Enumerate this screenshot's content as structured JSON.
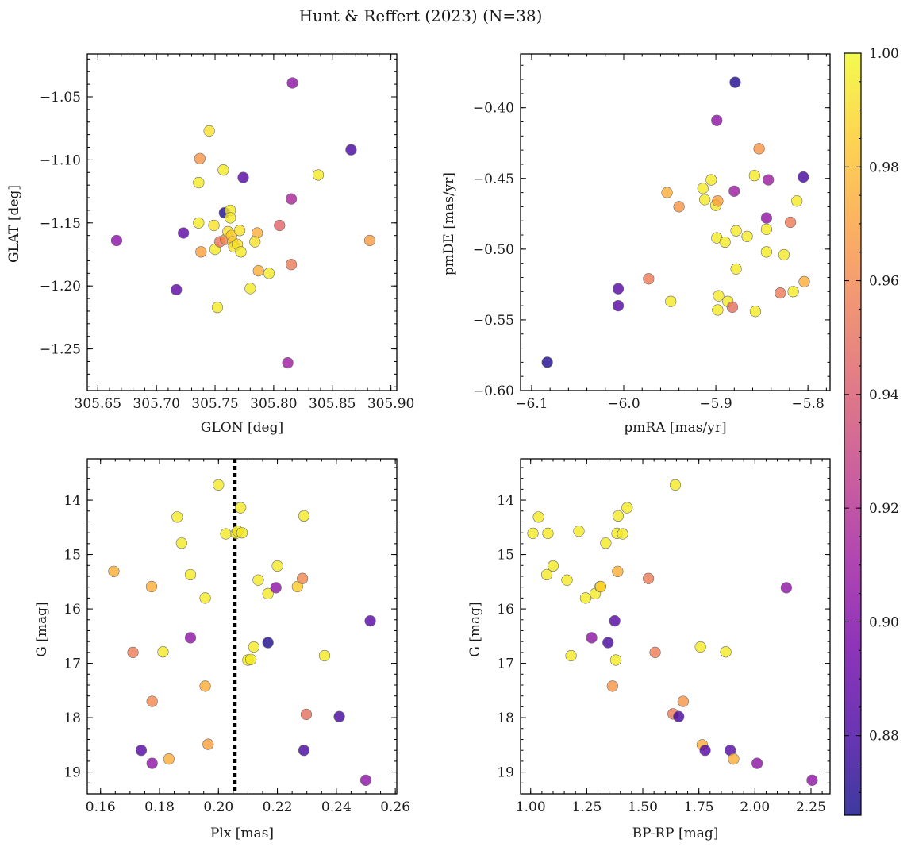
{
  "figure": {
    "title": "Hunt & Reffert (2023) (N=38)"
  },
  "colormap": {
    "name": "plasma",
    "stops": [
      "#0d0887",
      "#46039f",
      "#7201a8",
      "#9c179e",
      "#bd3786",
      "#d8576b",
      "#ed7953",
      "#fb9f3a",
      "#fdca26",
      "#f0f921"
    ],
    "alpha": 0.8,
    "range": [
      0.866,
      1.0
    ],
    "ticks": [
      0.88,
      0.9,
      0.92,
      0.94,
      0.96,
      0.98,
      1.0
    ],
    "tick_labels": [
      "0.88",
      "0.90",
      "0.92",
      "0.94",
      "0.96",
      "0.98",
      "1.00"
    ]
  },
  "chart_data": [
    {
      "type": "scatter",
      "xlabel": "GLON [deg]",
      "ylabel": "GLAT [deg]",
      "xlim": [
        305.641,
        305.905
      ],
      "ylim": [
        -1.283,
        -1.016
      ],
      "xticks": [
        305.65,
        305.7,
        305.75,
        305.8,
        305.85,
        305.9
      ],
      "xtick_labels": [
        "305.65",
        "305.70",
        "305.75",
        "305.80",
        "305.85",
        "305.90"
      ],
      "yticks": [
        -1.25,
        -1.2,
        -1.15,
        -1.1,
        -1.05
      ],
      "ytick_labels": [
        "−1.25",
        "−1.20",
        "−1.15",
        "−1.10",
        "−1.05"
      ],
      "x_minor_step": 0.01,
      "y_minor_step": 0.01,
      "points": [
        [
          305.666,
          -1.164,
          0.903
        ],
        [
          305.717,
          -1.203,
          0.888
        ],
        [
          305.723,
          -1.158,
          0.888
        ],
        [
          305.736,
          -1.118,
          0.995
        ],
        [
          305.736,
          -1.15,
          0.995
        ],
        [
          305.737,
          -1.099,
          0.965
        ],
        [
          305.738,
          -1.173,
          0.97
        ],
        [
          305.745,
          -1.077,
          0.992
        ],
        [
          305.749,
          -1.152,
          0.992
        ],
        [
          305.75,
          -1.171,
          0.995
        ],
        [
          305.752,
          -1.217,
          0.995
        ],
        [
          305.754,
          -1.165,
          0.952
        ],
        [
          305.757,
          -1.108,
          0.995
        ],
        [
          305.758,
          -1.142,
          0.87
        ],
        [
          305.759,
          -1.163,
          0.96
        ],
        [
          305.761,
          -1.157,
          0.992
        ],
        [
          305.763,
          -1.14,
          0.995
        ],
        [
          305.763,
          -1.146,
          0.995
        ],
        [
          305.764,
          -1.16,
          0.985
        ],
        [
          305.765,
          -1.165,
          0.985
        ],
        [
          305.766,
          -1.169,
          0.992
        ],
        [
          305.769,
          -1.167,
          0.992
        ],
        [
          305.771,
          -1.156,
          0.992
        ],
        [
          305.772,
          -1.173,
          0.995
        ],
        [
          305.774,
          -1.114,
          0.885
        ],
        [
          305.78,
          -1.202,
          0.995
        ],
        [
          305.786,
          -1.158,
          0.975
        ],
        [
          305.787,
          -1.188,
          0.975
        ],
        [
          305.796,
          -1.19,
          0.995
        ],
        [
          305.805,
          -1.152,
          0.945
        ],
        [
          305.812,
          -1.261,
          0.91
        ],
        [
          305.815,
          -1.183,
          0.955
        ],
        [
          305.815,
          -1.131,
          0.915
        ],
        [
          305.816,
          -1.039,
          0.905
        ],
        [
          305.838,
          -1.112,
          0.995
        ],
        [
          305.866,
          -1.092,
          0.88
        ],
        [
          305.882,
          -1.164,
          0.968
        ],
        [
          305.784,
          -1.165,
          0.992
        ]
      ]
    },
    {
      "type": "scatter",
      "xlabel": "pmRA [mas/yr]",
      "ylabel": "pmDE [mas/yr]",
      "xlim": [
        -6.112,
        -5.776
      ],
      "ylim": [
        -0.6,
        -0.362
      ],
      "xticks": [
        -6.1,
        -6.0,
        -5.9,
        -5.8
      ],
      "xtick_labels": [
        "−6.1",
        "−6.0",
        "−5.9",
        "−5.8"
      ],
      "yticks": [
        -0.6,
        -0.55,
        -0.5,
        -0.45,
        -0.4
      ],
      "ytick_labels": [
        "−0.60",
        "−0.55",
        "−0.50",
        "−0.45",
        "−0.40"
      ],
      "x_minor_step": 0.02,
      "y_minor_step": 0.01,
      "points": [
        [
          -6.083,
          -0.58,
          0.87
        ],
        [
          -6.006,
          -0.528,
          0.885
        ],
        [
          -6.006,
          -0.54,
          0.885
        ],
        [
          -5.973,
          -0.521,
          0.955
        ],
        [
          -5.953,
          -0.46,
          0.975
        ],
        [
          -5.949,
          -0.537,
          0.995
        ],
        [
          -5.94,
          -0.47,
          0.965
        ],
        [
          -5.914,
          -0.457,
          0.995
        ],
        [
          -5.912,
          -0.465,
          0.995
        ],
        [
          -5.905,
          -0.451,
          0.995
        ],
        [
          -5.9,
          -0.469,
          0.995
        ],
        [
          -5.899,
          -0.492,
          0.995
        ],
        [
          -5.898,
          -0.543,
          0.995
        ],
        [
          -5.897,
          -0.533,
          0.995
        ],
        [
          -5.898,
          -0.466,
          0.97
        ],
        [
          -5.899,
          -0.409,
          0.905
        ],
        [
          -5.89,
          -0.495,
          0.995
        ],
        [
          -5.887,
          -0.537,
          0.995
        ],
        [
          -5.882,
          -0.541,
          0.95
        ],
        [
          -5.88,
          -0.459,
          0.91
        ],
        [
          -5.878,
          -0.487,
          0.995
        ],
        [
          -5.878,
          -0.514,
          0.995
        ],
        [
          -5.879,
          -0.382,
          0.87
        ],
        [
          -5.866,
          -0.491,
          0.995
        ],
        [
          -5.858,
          -0.448,
          0.995
        ],
        [
          -5.857,
          -0.544,
          0.995
        ],
        [
          -5.853,
          -0.429,
          0.965
        ],
        [
          -5.845,
          -0.478,
          0.905
        ],
        [
          -5.845,
          -0.486,
          0.995
        ],
        [
          -5.845,
          -0.502,
          0.995
        ],
        [
          -5.843,
          -0.451,
          0.91
        ],
        [
          -5.83,
          -0.531,
          0.955
        ],
        [
          -5.826,
          -0.504,
          0.995
        ],
        [
          -5.819,
          -0.481,
          0.955
        ],
        [
          -5.816,
          -0.53,
          0.995
        ],
        [
          -5.812,
          -0.466,
          0.995
        ],
        [
          -5.805,
          -0.449,
          0.88
        ],
        [
          -5.804,
          -0.523,
          0.975
        ]
      ]
    },
    {
      "type": "scatter",
      "xlabel": "Plx [mas]",
      "ylabel": "G [mag]",
      "xlim": [
        0.1555,
        0.2605
      ],
      "ylim": [
        19.4,
        13.24
      ],
      "xticks": [
        0.16,
        0.18,
        0.2,
        0.22,
        0.24,
        0.26
      ],
      "xtick_labels": [
        "0.16",
        "0.18",
        "0.20",
        "0.22",
        "0.24",
        "0.26"
      ],
      "yticks": [
        14,
        15,
        16,
        17,
        18,
        19
      ],
      "ytick_labels": [
        "14",
        "15",
        "16",
        "17",
        "18",
        "19"
      ],
      "x_minor_step": 0.005,
      "y_minor_step": 0.2,
      "vline": {
        "x": 0.2055,
        "style": "dotted",
        "color": "#000000"
      },
      "points": [
        [
          0.1645,
          15.31,
          0.975
        ],
        [
          0.171,
          16.8,
          0.955
        ],
        [
          0.1738,
          18.6,
          0.885
        ],
        [
          0.1773,
          15.59,
          0.975
        ],
        [
          0.1775,
          17.7,
          0.96
        ],
        [
          0.1775,
          18.84,
          0.905
        ],
        [
          0.1812,
          16.79,
          0.995
        ],
        [
          0.1832,
          18.76,
          0.975
        ],
        [
          0.186,
          14.31,
          0.995
        ],
        [
          0.1875,
          14.79,
          0.995
        ],
        [
          0.1905,
          15.37,
          0.995
        ],
        [
          0.1905,
          16.53,
          0.905
        ],
        [
          0.1955,
          15.8,
          0.995
        ],
        [
          0.1955,
          17.42,
          0.975
        ],
        [
          0.1965,
          18.49,
          0.97
        ],
        [
          0.2,
          13.72,
          0.995
        ],
        [
          0.2025,
          14.62,
          0.995
        ],
        [
          0.206,
          14.61,
          0.995
        ],
        [
          0.2065,
          14.57,
          0.995
        ],
        [
          0.2075,
          14.14,
          0.995
        ],
        [
          0.21,
          16.94,
          0.995
        ],
        [
          0.212,
          16.7,
          0.995
        ],
        [
          0.2135,
          15.47,
          0.995
        ],
        [
          0.2168,
          15.72,
          0.995
        ],
        [
          0.2168,
          16.62,
          0.87
        ],
        [
          0.2195,
          15.61,
          0.905
        ],
        [
          0.22,
          15.21,
          0.995
        ],
        [
          0.2268,
          15.59,
          0.985
        ],
        [
          0.2285,
          15.44,
          0.96
        ],
        [
          0.229,
          18.6,
          0.88
        ],
        [
          0.229,
          14.29,
          0.995
        ],
        [
          0.2298,
          17.94,
          0.95
        ],
        [
          0.236,
          16.86,
          0.995
        ],
        [
          0.241,
          17.98,
          0.88
        ],
        [
          0.25,
          19.15,
          0.905
        ],
        [
          0.2515,
          16.22,
          0.885
        ],
        [
          0.208,
          14.6,
          0.995
        ],
        [
          0.211,
          16.93,
          0.995
        ]
      ]
    },
    {
      "type": "scatter",
      "xlabel": "BP-RP [mag]",
      "ylabel": "G [mag]",
      "xlim": [
        0.955,
        2.335
      ],
      "ylim": [
        19.4,
        13.24
      ],
      "xticks": [
        1.0,
        1.25,
        1.5,
        1.75,
        2.0,
        2.25
      ],
      "xtick_labels": [
        "1.00",
        "1.25",
        "1.50",
        "1.75",
        "2.00",
        "2.25"
      ],
      "yticks": [
        14,
        15,
        16,
        17,
        18,
        19
      ],
      "ytick_labels": [
        "14",
        "15",
        "16",
        "17",
        "18",
        "19"
      ],
      "x_minor_step": 0.05,
      "y_minor_step": 0.2,
      "points": [
        [
          1.01,
          14.61,
          0.995
        ],
        [
          1.035,
          14.31,
          0.995
        ],
        [
          1.072,
          15.37,
          0.995
        ],
        [
          1.077,
          14.61,
          0.995
        ],
        [
          1.1,
          15.21,
          0.995
        ],
        [
          1.162,
          15.47,
          0.995
        ],
        [
          1.18,
          16.86,
          0.995
        ],
        [
          1.215,
          14.57,
          0.995
        ],
        [
          1.245,
          15.8,
          0.995
        ],
        [
          1.272,
          16.53,
          0.905
        ],
        [
          1.288,
          15.72,
          0.995
        ],
        [
          1.31,
          15.59,
          0.995
        ],
        [
          1.312,
          15.59,
          0.985
        ],
        [
          1.335,
          14.79,
          0.995
        ],
        [
          1.345,
          16.62,
          0.88
        ],
        [
          1.365,
          17.42,
          0.965
        ],
        [
          1.375,
          16.22,
          0.885
        ],
        [
          1.38,
          16.94,
          0.995
        ],
        [
          1.385,
          14.61,
          0.995
        ],
        [
          1.388,
          15.31,
          0.975
        ],
        [
          1.39,
          14.29,
          0.995
        ],
        [
          1.41,
          14.62,
          0.995
        ],
        [
          1.43,
          14.14,
          0.995
        ],
        [
          1.525,
          15.44,
          0.955
        ],
        [
          1.555,
          16.8,
          0.955
        ],
        [
          1.635,
          17.93,
          0.955
        ],
        [
          1.645,
          13.72,
          0.995
        ],
        [
          1.66,
          17.98,
          0.88
        ],
        [
          1.68,
          17.7,
          0.965
        ],
        [
          1.757,
          16.7,
          0.995
        ],
        [
          1.765,
          18.5,
          0.975
        ],
        [
          1.778,
          18.6,
          0.885
        ],
        [
          1.87,
          16.79,
          0.995
        ],
        [
          1.89,
          18.6,
          0.885
        ],
        [
          1.905,
          18.76,
          0.975
        ],
        [
          2.01,
          18.84,
          0.905
        ],
        [
          2.14,
          15.61,
          0.905
        ],
        [
          2.255,
          19.15,
          0.905
        ]
      ]
    }
  ]
}
